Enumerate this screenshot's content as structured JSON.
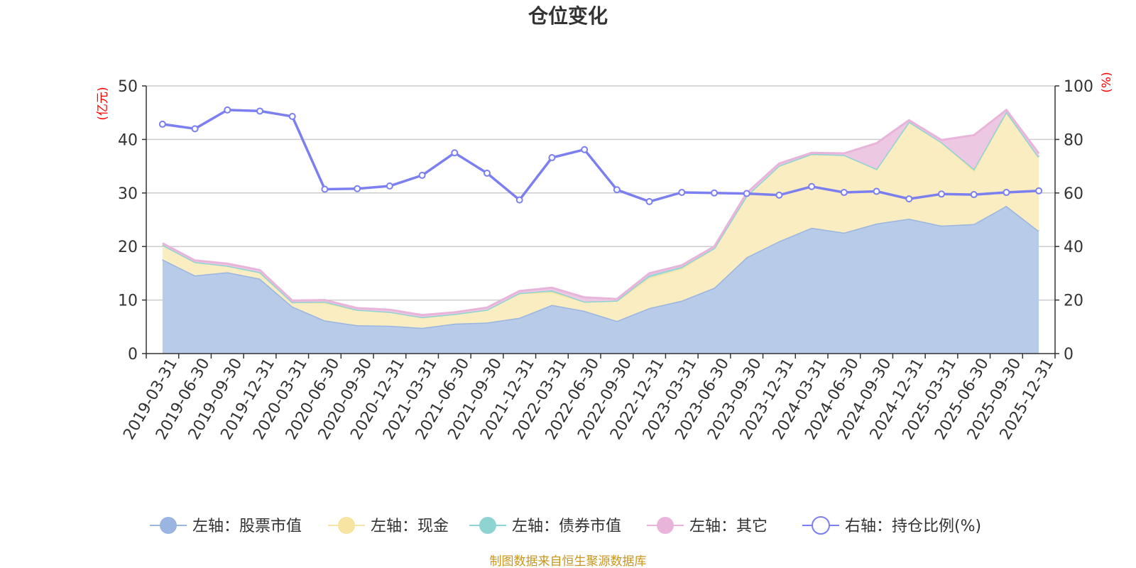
{
  "chart_data": {
    "type": "area",
    "title": "仓位变化",
    "left_axis_unit": "(亿元)",
    "right_axis_unit": "(%)",
    "left_ylim": [
      0,
      50
    ],
    "left_ticks": [
      "0",
      "10",
      "20",
      "30",
      "40",
      "50"
    ],
    "right_ylim": [
      0,
      100
    ],
    "right_ticks": [
      "0",
      "20",
      "40",
      "60",
      "80",
      "100"
    ],
    "categories": [
      "2019-03-31",
      "2019-06-30",
      "2019-09-30",
      "2019-12-31",
      "2020-03-31",
      "2020-06-30",
      "2020-09-30",
      "2020-12-31",
      "2021-03-31",
      "2021-06-30",
      "2021-09-30",
      "2021-12-31",
      "2022-03-31",
      "2022-06-30",
      "2022-09-30",
      "2022-12-31",
      "2023-03-31",
      "2023-06-30",
      "2023-09-30",
      "2023-12-31",
      "2024-03-31",
      "2024-06-30",
      "2024-09-30",
      "2024-12-31",
      "2025-03-31",
      "2025-06-30",
      "2025-09-30",
      "2025-12-31"
    ],
    "stacked_series": [
      {
        "name": "左轴：股票市值",
        "color": "#9ab5e0",
        "fill": "#b8cbe9",
        "values": [
          17.6,
          14.6,
          15.2,
          14.0,
          8.8,
          6.2,
          5.3,
          5.2,
          4.8,
          5.6,
          5.8,
          6.7,
          9.1,
          8.0,
          6.1,
          8.5,
          9.9,
          12.3,
          18.0,
          21.0,
          23.5,
          22.6,
          24.3,
          25.2,
          23.9,
          24.2,
          27.6,
          22.9
        ]
      },
      {
        "name": "左轴：现金",
        "color": "#f7e4a2",
        "fill": "#f9edc1",
        "values": [
          2.7,
          2.5,
          1.2,
          1.2,
          0.8,
          3.3,
          2.9,
          2.6,
          2.0,
          1.8,
          2.4,
          4.6,
          2.4,
          1.7,
          3.8,
          5.7,
          6.0,
          7.4,
          11.5,
          14.1,
          13.8,
          14.5,
          10.2,
          18.1,
          15.6,
          10.0,
          17.5,
          13.8
        ]
      },
      {
        "name": "左轴：债券市值",
        "color": "#8fd3d3",
        "fill": "#a8dede",
        "values": [
          0,
          0,
          0,
          0,
          0,
          0.2,
          0,
          0,
          0,
          0,
          0,
          0,
          0.3,
          0,
          0,
          0.4,
          0.3,
          0,
          0,
          0,
          0,
          0,
          0,
          0,
          0,
          0.3,
          0.1,
          0
        ]
      },
      {
        "name": "左轴：其它",
        "color": "#e8b4da",
        "fill": "#ecc8e3",
        "values": [
          0.3,
          0.3,
          0.4,
          0.4,
          0.3,
          0.3,
          0.3,
          0.4,
          0.4,
          0.3,
          0.4,
          0.4,
          0.5,
          0.8,
          0.3,
          0.4,
          0.3,
          0.3,
          0.5,
          0.4,
          0.2,
          0.3,
          4.8,
          0.3,
          0.4,
          6.3,
          0.3,
          0.7
        ]
      }
    ],
    "line_series": {
      "name": "右轴：持仓比例(%)",
      "color": "#7b7ff0",
      "values": [
        85.7,
        84.0,
        91.0,
        90.6,
        88.6,
        61.4,
        61.6,
        62.6,
        66.6,
        75.0,
        67.4,
        57.4,
        73.2,
        76.2,
        61.2,
        56.8,
        60.2,
        60.0,
        59.8,
        59.2,
        62.4,
        60.2,
        60.6,
        57.8,
        59.6,
        59.4,
        60.2,
        60.8
      ]
    },
    "source": "制图数据来自恒生聚源数据库"
  }
}
